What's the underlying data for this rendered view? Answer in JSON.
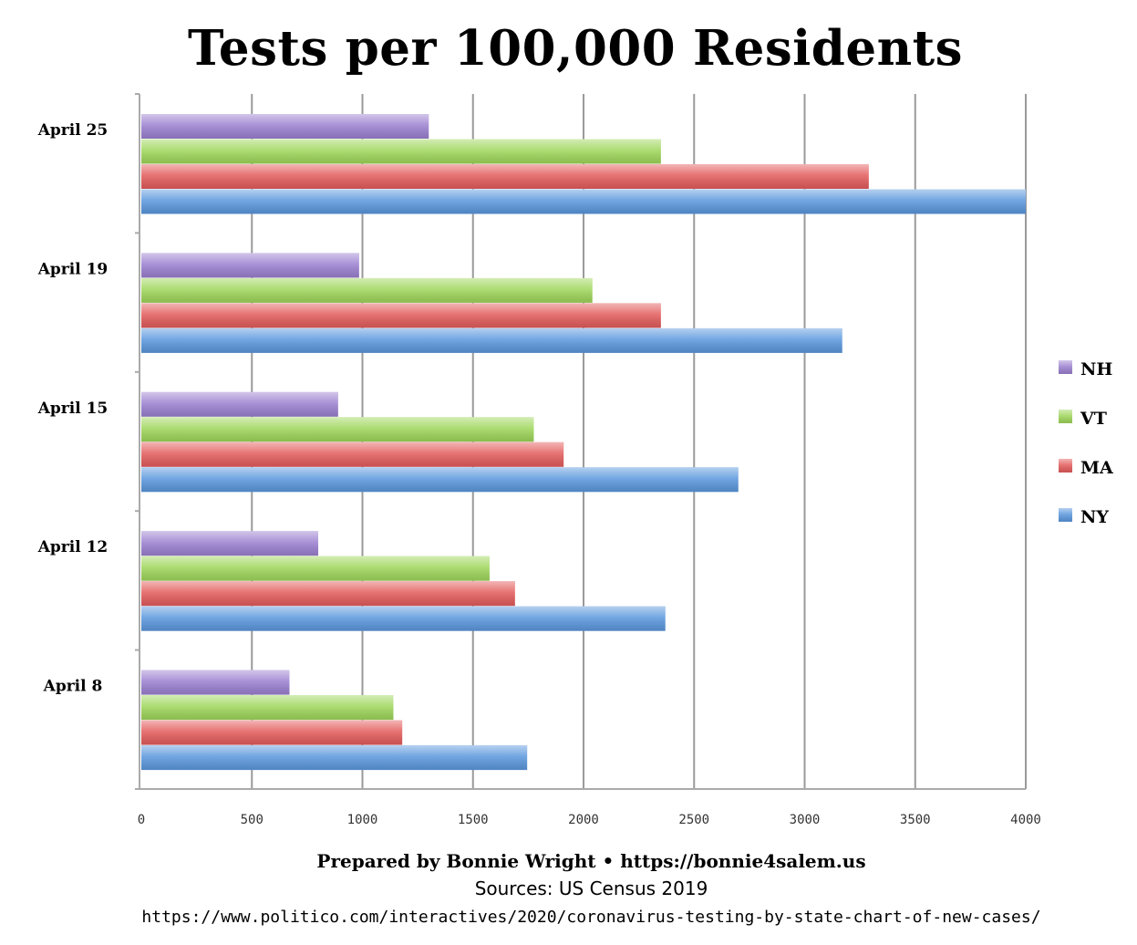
{
  "chart_data": {
    "type": "bar",
    "orientation": "horizontal",
    "title": "Tests per 100,000 Residents",
    "categories": [
      "April 25",
      "April 19",
      "April 15",
      "April 12",
      "April 8"
    ],
    "series": [
      {
        "name": "NH",
        "color": "#9b7fd0",
        "values": [
          1300,
          985,
          890,
          800,
          670
        ]
      },
      {
        "name": "VT",
        "color": "#9ed65a",
        "values": [
          2350,
          2040,
          1775,
          1575,
          1140
        ]
      },
      {
        "name": "MA",
        "color": "#e35b5b",
        "values": [
          3290,
          2350,
          1910,
          1690,
          1180
        ]
      },
      {
        "name": "NY",
        "color": "#5a97dd",
        "values": [
          4000,
          3170,
          2700,
          2370,
          1745
        ]
      }
    ],
    "xlim": [
      0,
      4000
    ],
    "xticks": [
      "0",
      "500",
      "1000",
      "1500",
      "2000",
      "2500",
      "3000",
      "3500",
      "4000"
    ],
    "grid": "vertical",
    "legend": "right"
  },
  "footer": {
    "prepared_by": "Prepared by Bonnie Wright • https://bonnie4salem.us",
    "sources": "Sources: US Census 2019",
    "url": "https://www.politico.com/interactives/2020/coronavirus-testing-by-state-chart-of-new-cases/"
  }
}
